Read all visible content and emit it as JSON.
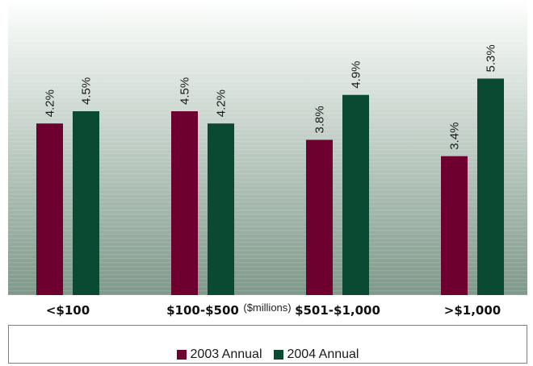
{
  "chart_data": {
    "type": "bar",
    "categories": [
      "<$100",
      "$100-$500",
      "$501-$1,000",
      ">$1,000"
    ],
    "series": [
      {
        "name": "2003 Annual",
        "values": [
          4.2,
          4.5,
          3.8,
          3.4
        ],
        "labels": [
          "4.2%",
          "4.5%",
          "3.8%",
          "3.4%"
        ],
        "color": "#6e0030"
      },
      {
        "name": "2004 Annual",
        "values": [
          4.5,
          4.2,
          4.9,
          5.3
        ],
        "labels": [
          "4.5%",
          "4.2%",
          "4.9%",
          "5.3%"
        ],
        "color": "#0a4a33"
      }
    ],
    "xlabel": "($millions)",
    "ylim": [
      0,
      6
    ],
    "grid": true,
    "legend_position": "bottom"
  },
  "legend": {
    "items": [
      {
        "label": "2003 Annual",
        "color": "#6e0030"
      },
      {
        "label": "2004 Annual",
        "color": "#0a4a33"
      }
    ]
  }
}
